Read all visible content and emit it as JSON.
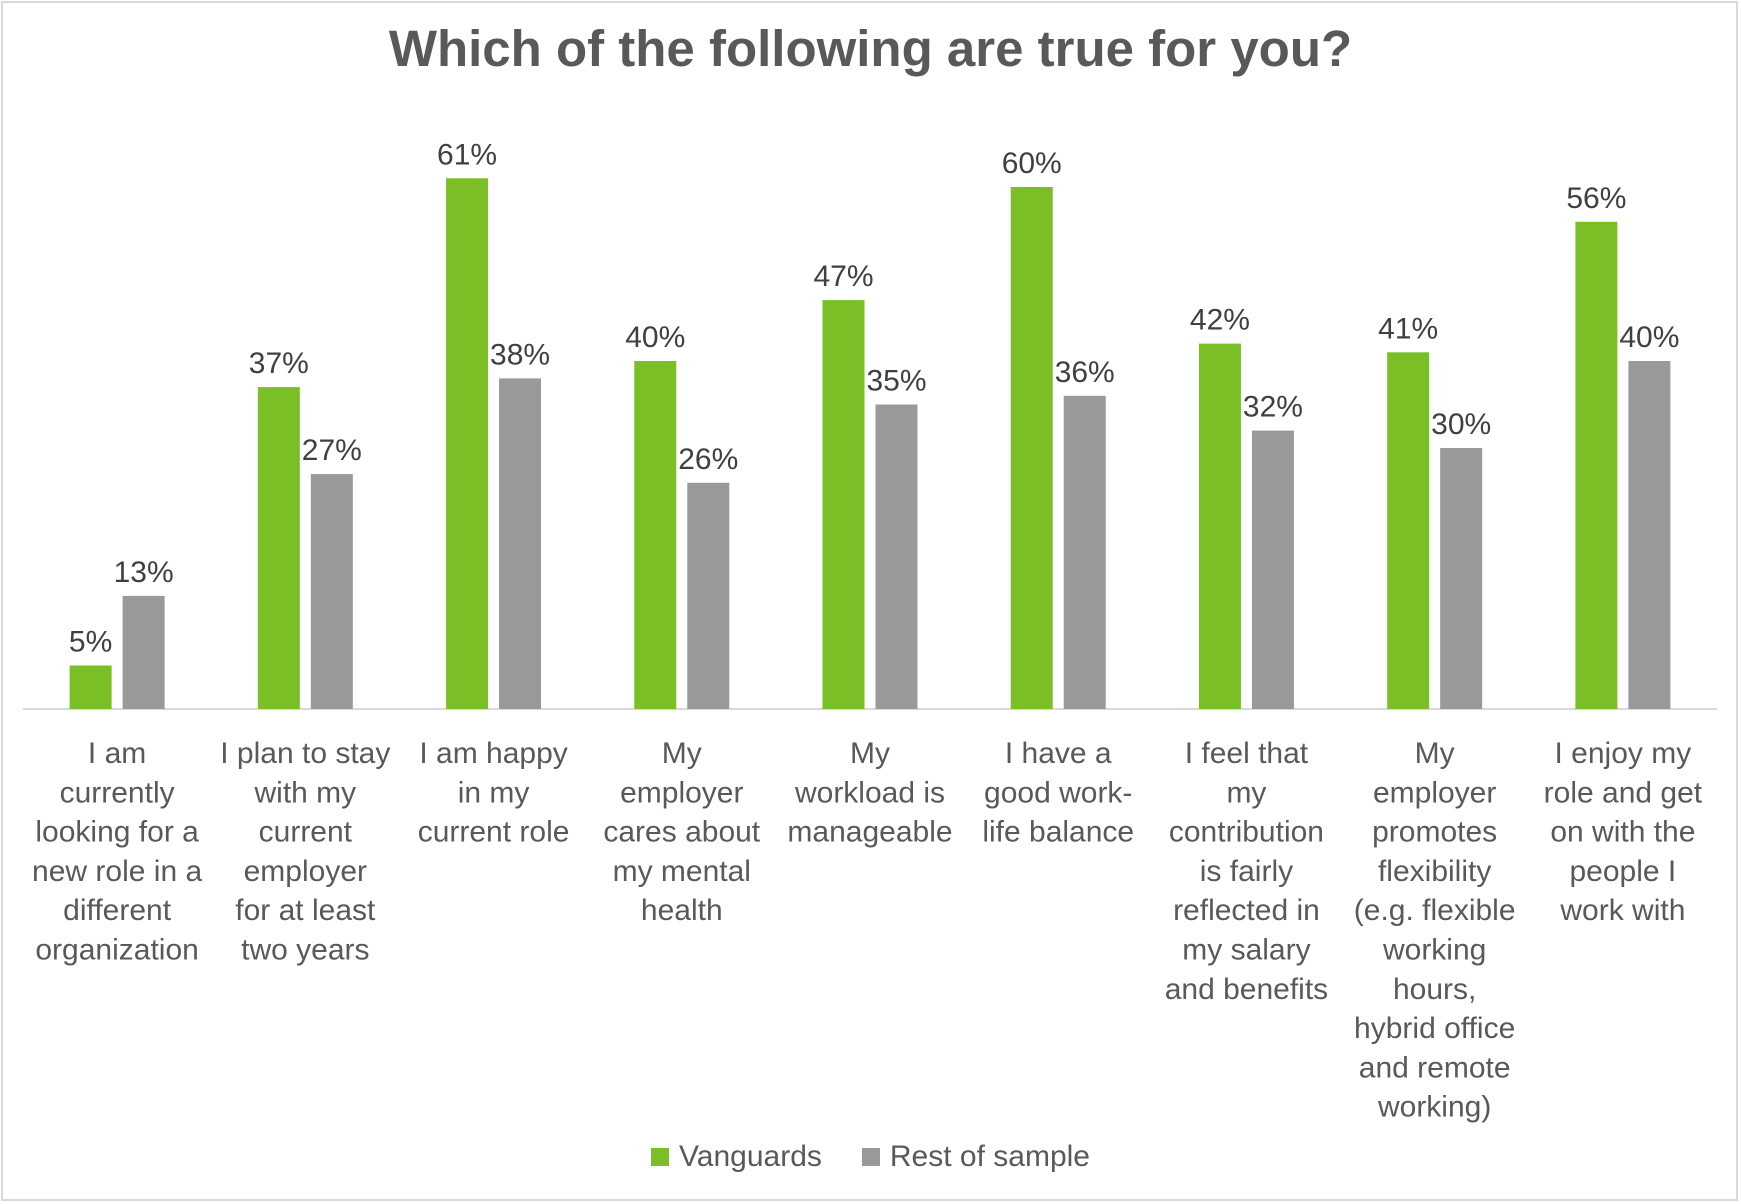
{
  "chart_data": {
    "type": "bar",
    "title": "Which of the following are true for you?",
    "categories": [
      "I am currently looking for a new role in a different organization",
      "I plan to stay with my current employer for at least two years",
      "I am happy in my current role",
      "My employer cares about my mental health",
      "My workload is manageable",
      "I have a good work-life balance",
      "I feel that my contribution is fairly reflected in my salary and benefits",
      "My employer promotes flexibility (e.g. flexible working hours, hybrid office and remote working)",
      "I enjoy my role and get on with the people I work with"
    ],
    "category_lines": [
      [
        "I am",
        "currently",
        "looking for a",
        "new role in a",
        "different",
        "organization"
      ],
      [
        "I plan to stay",
        "with my",
        "current",
        "employer",
        "for at least",
        "two years"
      ],
      [
        "I am happy",
        "in my",
        "current role"
      ],
      [
        "My",
        "employer",
        "cares about",
        "my mental",
        "health"
      ],
      [
        "My",
        "workload is",
        "manageable"
      ],
      [
        "I have a",
        "good work-",
        "life balance"
      ],
      [
        "I feel that",
        "my",
        "contribution",
        "is fairly",
        "reflected in",
        "my salary",
        "and benefits"
      ],
      [
        "My",
        "employer",
        "promotes",
        "flexibility",
        "(e.g. flexible",
        "working",
        "hours,",
        "hybrid office",
        "and remote",
        "working)"
      ],
      [
        "I enjoy my",
        "role and get",
        "on with the",
        "people I",
        "work with"
      ]
    ],
    "series": [
      {
        "name": "Vanguards",
        "color": "#7abf26",
        "values": [
          5,
          37,
          61,
          40,
          47,
          60,
          42,
          41,
          56
        ],
        "labels": [
          "5%",
          "37%",
          "61%",
          "40%",
          "47%",
          "60%",
          "42%",
          "41%",
          "56%"
        ]
      },
      {
        "name": "Rest of sample",
        "color": "#999999",
        "values": [
          13,
          27,
          38,
          26,
          35,
          36,
          32,
          30,
          40
        ],
        "labels": [
          "13%",
          "27%",
          "38%",
          "26%",
          "35%",
          "36%",
          "32%",
          "30%",
          "40%"
        ]
      }
    ],
    "ylim": [
      0,
      70
    ],
    "grid": false,
    "legend_position": "bottom"
  }
}
